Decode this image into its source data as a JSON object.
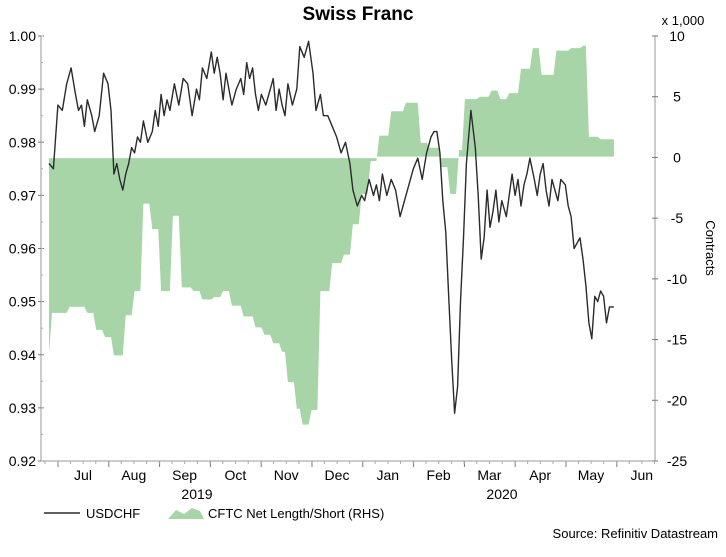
{
  "chart_data": {
    "type": "line",
    "title": "Swiss Franc",
    "subtitle": "",
    "left_axis": {
      "ylim": [
        0.92,
        1.0
      ],
      "ticks": [
        "0.92",
        "0.93",
        "0.94",
        "0.95",
        "0.96",
        "0.97",
        "0.98",
        "0.99",
        "1.00"
      ]
    },
    "right_axis": {
      "label": "Contracts",
      "multiplier": "x 1,000",
      "ylim": [
        -25,
        10
      ],
      "ticks": [
        "-25",
        "-20",
        "-15",
        "-10",
        "-5",
        "0",
        "5",
        "10"
      ]
    },
    "x_months": [
      "Jul",
      "Aug",
      "Sep",
      "Oct",
      "Nov",
      "Dec",
      "Jan",
      "Feb",
      "Mar",
      "Apr",
      "May",
      "Jun"
    ],
    "x_years": [
      "2019",
      "2020"
    ],
    "grid": false,
    "legend_position": "bottom-left",
    "source": "Source: Refinitiv Datastream",
    "colors": {
      "usdchf": "#2b2b2b",
      "cftc": "#a8d5a8"
    },
    "series": [
      {
        "name": "USDCHF",
        "axis": "left",
        "style": "line",
        "values": [
          [
            0.0,
            0.976
          ],
          [
            0.15,
            0.975
          ],
          [
            0.3,
            0.987
          ],
          [
            0.45,
            0.986
          ],
          [
            0.6,
            0.991
          ],
          [
            0.75,
            0.994
          ],
          [
            0.9,
            0.989
          ],
          [
            1.0,
            0.986
          ],
          [
            1.1,
            0.987
          ],
          [
            1.2,
            0.983
          ],
          [
            1.3,
            0.988
          ],
          [
            1.45,
            0.985
          ],
          [
            1.55,
            0.982
          ],
          [
            1.7,
            0.985
          ],
          [
            1.85,
            0.993
          ],
          [
            2.0,
            0.991
          ],
          [
            2.1,
            0.986
          ],
          [
            2.2,
            0.974
          ],
          [
            2.3,
            0.976
          ],
          [
            2.4,
            0.973
          ],
          [
            2.5,
            0.971
          ],
          [
            2.6,
            0.974
          ],
          [
            2.7,
            0.976
          ],
          [
            2.8,
            0.979
          ],
          [
            2.9,
            0.978
          ],
          [
            3.0,
            0.981
          ],
          [
            3.1,
            0.98
          ],
          [
            3.2,
            0.984
          ],
          [
            3.35,
            0.98
          ],
          [
            3.5,
            0.982
          ],
          [
            3.6,
            0.986
          ],
          [
            3.7,
            0.983
          ],
          [
            3.8,
            0.989
          ],
          [
            3.9,
            0.985
          ],
          [
            4.0,
            0.988
          ],
          [
            4.1,
            0.986
          ],
          [
            4.25,
            0.991
          ],
          [
            4.4,
            0.987
          ],
          [
            4.55,
            0.992
          ],
          [
            4.7,
            0.991
          ],
          [
            4.85,
            0.985
          ],
          [
            5.0,
            0.99
          ],
          [
            5.1,
            0.988
          ],
          [
            5.2,
            0.994
          ],
          [
            5.35,
            0.992
          ],
          [
            5.5,
            0.997
          ],
          [
            5.6,
            0.993
          ],
          [
            5.7,
            0.996
          ],
          [
            5.8,
            0.993
          ],
          [
            5.9,
            0.988
          ],
          [
            6.0,
            0.993
          ],
          [
            6.1,
            0.99
          ],
          [
            6.2,
            0.987
          ],
          [
            6.35,
            0.99
          ],
          [
            6.5,
            0.992
          ],
          [
            6.6,
            0.989
          ],
          [
            6.7,
            0.995
          ],
          [
            6.8,
            0.992
          ],
          [
            6.9,
            0.994
          ],
          [
            7.0,
            0.989
          ],
          [
            7.1,
            0.986
          ],
          [
            7.2,
            0.989
          ],
          [
            7.35,
            0.987
          ],
          [
            7.5,
            0.99
          ],
          [
            7.6,
            0.992
          ],
          [
            7.7,
            0.986
          ],
          [
            7.8,
            0.99
          ],
          [
            7.9,
            0.987
          ],
          [
            8.0,
            0.985
          ],
          [
            8.1,
            0.991
          ],
          [
            8.25,
            0.987
          ],
          [
            8.4,
            0.99
          ],
          [
            8.5,
            0.998
          ],
          [
            8.65,
            0.996
          ],
          [
            8.8,
            0.999
          ],
          [
            8.95,
            0.993
          ],
          [
            9.05,
            0.986
          ],
          [
            9.2,
            0.989
          ],
          [
            9.3,
            0.985
          ],
          [
            9.45,
            0.985
          ],
          [
            9.6,
            0.983
          ],
          [
            9.75,
            0.981
          ],
          [
            9.9,
            0.978
          ],
          [
            10.05,
            0.98
          ],
          [
            10.2,
            0.976
          ],
          [
            10.3,
            0.971
          ],
          [
            10.45,
            0.968
          ],
          [
            10.6,
            0.97
          ],
          [
            10.7,
            0.969
          ],
          [
            10.85,
            0.973
          ],
          [
            11.0,
            0.97
          ],
          [
            11.1,
            0.972
          ],
          [
            11.2,
            0.969
          ],
          [
            11.3,
            0.974
          ],
          [
            11.45,
            0.97
          ],
          [
            11.6,
            0.973
          ],
          [
            11.75,
            0.971
          ],
          [
            11.9,
            0.966
          ],
          [
            12.05,
            0.969
          ],
          [
            12.2,
            0.972
          ],
          [
            12.35,
            0.975
          ],
          [
            12.5,
            0.977
          ],
          [
            12.65,
            0.973
          ],
          [
            12.8,
            0.978
          ],
          [
            12.95,
            0.981
          ],
          [
            13.05,
            0.982
          ],
          [
            13.15,
            0.982
          ],
          [
            13.25,
            0.978
          ],
          [
            13.35,
            0.969
          ],
          [
            13.45,
            0.963
          ],
          [
            13.55,
            0.951
          ],
          [
            13.65,
            0.939
          ],
          [
            13.75,
            0.929
          ],
          [
            13.85,
            0.934
          ],
          [
            13.95,
            0.95
          ],
          [
            14.05,
            0.962
          ],
          [
            14.15,
            0.976
          ],
          [
            14.3,
            0.986
          ],
          [
            14.45,
            0.979
          ],
          [
            14.55,
            0.97
          ],
          [
            14.65,
            0.958
          ],
          [
            14.75,
            0.962
          ],
          [
            14.85,
            0.971
          ],
          [
            14.95,
            0.964
          ],
          [
            15.05,
            0.967
          ],
          [
            15.15,
            0.971
          ],
          [
            15.25,
            0.965
          ],
          [
            15.35,
            0.969
          ],
          [
            15.5,
            0.966
          ],
          [
            15.6,
            0.97
          ],
          [
            15.7,
            0.974
          ],
          [
            15.8,
            0.97
          ],
          [
            15.9,
            0.973
          ],
          [
            16.0,
            0.968
          ],
          [
            16.1,
            0.972
          ],
          [
            16.2,
            0.974
          ],
          [
            16.3,
            0.977
          ],
          [
            16.45,
            0.973
          ],
          [
            16.55,
            0.97
          ],
          [
            16.65,
            0.974
          ],
          [
            16.75,
            0.976
          ],
          [
            16.85,
            0.971
          ],
          [
            16.95,
            0.968
          ],
          [
            17.05,
            0.973
          ],
          [
            17.15,
            0.971
          ],
          [
            17.25,
            0.969
          ],
          [
            17.35,
            0.973
          ],
          [
            17.5,
            0.972
          ],
          [
            17.6,
            0.968
          ],
          [
            17.7,
            0.966
          ],
          [
            17.8,
            0.96
          ],
          [
            17.9,
            0.961
          ],
          [
            18.0,
            0.962
          ],
          [
            18.1,
            0.958
          ],
          [
            18.2,
            0.953
          ],
          [
            18.3,
            0.946
          ],
          [
            18.4,
            0.943
          ],
          [
            18.5,
            0.951
          ],
          [
            18.6,
            0.95
          ],
          [
            18.7,
            0.952
          ],
          [
            18.8,
            0.951
          ],
          [
            18.9,
            0.946
          ],
          [
            19.0,
            0.949
          ],
          [
            19.15,
            0.949
          ]
        ]
      },
      {
        "name": "CFTC Net Length/Short (RHS)",
        "axis": "right",
        "style": "area",
        "values": [
          [
            0.0,
            -16.2
          ],
          [
            0.1,
            -12.8
          ],
          [
            0.6,
            -12.8
          ],
          [
            0.7,
            -12.3
          ],
          [
            1.2,
            -12.3
          ],
          [
            1.3,
            -12.8
          ],
          [
            1.5,
            -12.8
          ],
          [
            1.6,
            -14.2
          ],
          [
            1.8,
            -14.2
          ],
          [
            1.9,
            -14.8
          ],
          [
            2.1,
            -14.8
          ],
          [
            2.2,
            -16.3
          ],
          [
            2.5,
            -16.3
          ],
          [
            2.6,
            -13.0
          ],
          [
            2.8,
            -13.0
          ],
          [
            2.9,
            -11.0
          ],
          [
            3.1,
            -11.0
          ],
          [
            3.2,
            -3.8
          ],
          [
            3.4,
            -3.8
          ],
          [
            3.5,
            -5.9
          ],
          [
            3.7,
            -5.9
          ],
          [
            3.8,
            -11.0
          ],
          [
            4.1,
            -11.0
          ],
          [
            4.2,
            -4.8
          ],
          [
            4.4,
            -4.8
          ],
          [
            4.5,
            -10.7
          ],
          [
            4.8,
            -10.7
          ],
          [
            4.9,
            -11.0
          ],
          [
            5.1,
            -11.0
          ],
          [
            5.2,
            -11.7
          ],
          [
            5.5,
            -11.7
          ],
          [
            5.6,
            -11.5
          ],
          [
            5.8,
            -11.5
          ],
          [
            5.9,
            -11.0
          ],
          [
            6.1,
            -11.0
          ],
          [
            6.2,
            -12.2
          ],
          [
            6.5,
            -12.2
          ],
          [
            6.6,
            -13.1
          ],
          [
            6.9,
            -13.1
          ],
          [
            7.0,
            -14.0
          ],
          [
            7.2,
            -14.0
          ],
          [
            7.3,
            -14.6
          ],
          [
            7.5,
            -14.6
          ],
          [
            7.6,
            -15.3
          ],
          [
            7.8,
            -15.3
          ],
          [
            7.9,
            -16.0
          ],
          [
            8.0,
            -16.0
          ],
          [
            8.1,
            -18.5
          ],
          [
            8.3,
            -18.5
          ],
          [
            8.4,
            -20.7
          ],
          [
            8.5,
            -20.7
          ],
          [
            8.6,
            -22.0
          ],
          [
            8.8,
            -22.0
          ],
          [
            8.9,
            -20.8
          ],
          [
            9.1,
            -20.8
          ],
          [
            9.2,
            -11.0
          ],
          [
            9.5,
            -11.0
          ],
          [
            9.6,
            -8.7
          ],
          [
            9.9,
            -8.7
          ],
          [
            10.0,
            -8.0
          ],
          [
            10.2,
            -8.0
          ],
          [
            10.3,
            -5.5
          ],
          [
            10.5,
            -5.5
          ],
          [
            10.6,
            -3.0
          ],
          [
            10.8,
            -3.0
          ],
          [
            10.9,
            -0.3
          ],
          [
            11.1,
            -0.3
          ],
          [
            11.2,
            1.8
          ],
          [
            11.5,
            1.8
          ],
          [
            11.6,
            3.8
          ],
          [
            12.0,
            3.8
          ],
          [
            12.1,
            4.5
          ],
          [
            12.5,
            4.5
          ],
          [
            12.6,
            1.2
          ],
          [
            12.8,
            1.2
          ],
          [
            12.9,
            0.8
          ],
          [
            13.2,
            0.8
          ],
          [
            13.3,
            -0.8
          ],
          [
            13.5,
            -0.8
          ],
          [
            13.6,
            -3.0
          ],
          [
            13.8,
            -3.0
          ],
          [
            13.9,
            0.6
          ],
          [
            14.0,
            0.6
          ],
          [
            14.1,
            4.8
          ],
          [
            14.5,
            4.8
          ],
          [
            14.6,
            5.0
          ],
          [
            14.9,
            5.0
          ],
          [
            15.0,
            5.5
          ],
          [
            15.2,
            5.5
          ],
          [
            15.3,
            4.8
          ],
          [
            15.5,
            4.8
          ],
          [
            15.6,
            5.3
          ],
          [
            15.9,
            5.3
          ],
          [
            16.0,
            7.3
          ],
          [
            16.3,
            7.3
          ],
          [
            16.4,
            9.0
          ],
          [
            16.6,
            9.0
          ],
          [
            16.7,
            6.8
          ],
          [
            17.1,
            6.8
          ],
          [
            17.2,
            8.8
          ],
          [
            17.6,
            8.8
          ],
          [
            17.7,
            9.0
          ],
          [
            18.0,
            9.0
          ],
          [
            18.1,
            9.2
          ],
          [
            18.2,
            9.2
          ],
          [
            18.3,
            1.7
          ],
          [
            18.6,
            1.7
          ],
          [
            18.7,
            1.5
          ],
          [
            19.15,
            1.5
          ]
        ]
      }
    ]
  },
  "legend": {
    "usdchf_label": "USDCHF",
    "cftc_label": "CFTC Net Length/Short (RHS)"
  }
}
